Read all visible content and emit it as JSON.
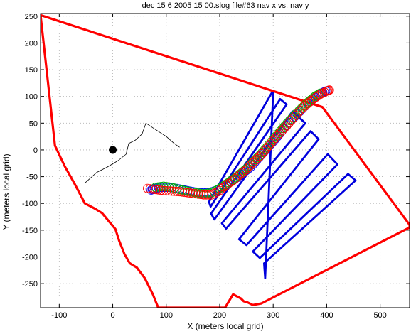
{
  "chart_data": {
    "type": "scatter",
    "title": "dec 15 6 2005      15 00.slog  file#63   nav x vs. nav y",
    "xlabel": "X (meters local grid)",
    "ylabel": "Y (meters local grid)",
    "xlim": [
      -135,
      555
    ],
    "ylim": [
      -295,
      255
    ],
    "grid": true,
    "x_ticks": [
      -100,
      0,
      100,
      200,
      300,
      400,
      500
    ],
    "y_ticks": [
      250,
      200,
      150,
      100,
      50,
      0,
      -50,
      -100,
      -150,
      -200,
      -250
    ],
    "colors": {
      "boundary": "#ff0000",
      "survey_lines": "#0000dd",
      "track_blue": "#0000ff",
      "track_green": "#00bb00",
      "track_red": "#ff0000",
      "nav_trace": "#000000",
      "reference_point": "#000000"
    },
    "series": [
      {
        "style": "line",
        "color_key": "boundary",
        "points": [
          [
            -135,
            252
          ],
          [
            -108,
            8
          ],
          [
            -90,
            -30
          ],
          [
            -72,
            -62
          ],
          [
            -52,
            -100
          ],
          [
            -33,
            -110
          ],
          [
            -20,
            -118
          ],
          [
            -10,
            -130
          ],
          [
            5,
            -148
          ],
          [
            12,
            -170
          ],
          [
            22,
            -195
          ],
          [
            32,
            -212
          ],
          [
            45,
            -220
          ],
          [
            60,
            -240
          ],
          [
            75,
            -270
          ],
          [
            85,
            -295
          ],
          [
            210,
            -295
          ],
          [
            225,
            -270
          ],
          [
            240,
            -278
          ],
          [
            245,
            -283
          ],
          [
            252,
            -285
          ],
          [
            262,
            -290
          ],
          [
            278,
            -287
          ],
          [
            555,
            -145
          ],
          [
            555,
            -140
          ],
          [
            392,
            80
          ],
          [
            -135,
            252
          ]
        ]
      },
      {
        "style": "line",
        "color_key": "survey_lines",
        "points": [
          [
            298,
            108
          ],
          [
            180,
            -97
          ],
          [
            183,
            -106
          ],
          [
            313,
            95
          ],
          [
            325,
            85
          ],
          [
            184,
            -119
          ],
          [
            190,
            -130
          ],
          [
            336,
            72
          ],
          [
            360,
            50
          ],
          [
            204,
            -137
          ],
          [
            212,
            -147
          ],
          [
            370,
            35
          ],
          [
            385,
            20
          ],
          [
            236,
            -167
          ],
          [
            250,
            -178
          ],
          [
            402,
            -8
          ],
          [
            420,
            -27
          ],
          [
            262,
            -190
          ],
          [
            275,
            -202
          ],
          [
            440,
            -45
          ],
          [
            454,
            -57
          ],
          [
            283,
            -212
          ],
          [
            285,
            -240
          ],
          [
            300,
            108
          ]
        ]
      },
      {
        "style": "line",
        "color_key": "nav_trace",
        "points": [
          [
            -52,
            -62
          ],
          [
            -30,
            -42
          ],
          [
            -10,
            -32
          ],
          [
            10,
            -20
          ],
          [
            25,
            -8
          ],
          [
            30,
            12
          ],
          [
            42,
            18
          ],
          [
            55,
            30
          ],
          [
            62,
            50
          ],
          [
            80,
            38
          ],
          [
            100,
            25
          ],
          [
            115,
            12
          ],
          [
            125,
            5
          ]
        ]
      },
      {
        "style": "circles",
        "color_key": "track_blue",
        "points": [
          [
            72,
            -75
          ],
          [
            78,
            -72
          ],
          [
            90,
            -70
          ],
          [
            105,
            -70
          ],
          [
            120,
            -72
          ],
          [
            135,
            -75
          ],
          [
            150,
            -78
          ],
          [
            165,
            -80
          ],
          [
            180,
            -80
          ],
          [
            195,
            -75
          ],
          [
            208,
            -68
          ],
          [
            220,
            -60
          ],
          [
            232,
            -52
          ],
          [
            245,
            -42
          ],
          [
            258,
            -32
          ],
          [
            270,
            -18
          ],
          [
            282,
            -5
          ],
          [
            295,
            10
          ],
          [
            308,
            25
          ],
          [
            320,
            40
          ],
          [
            335,
            57
          ],
          [
            350,
            72
          ],
          [
            365,
            87
          ],
          [
            378,
            98
          ],
          [
            390,
            106
          ],
          [
            398,
            110
          ]
        ]
      },
      {
        "style": "circles",
        "color_key": "track_green",
        "points": [
          [
            80,
            -70
          ],
          [
            95,
            -68
          ],
          [
            110,
            -70
          ],
          [
            125,
            -74
          ],
          [
            140,
            -77
          ],
          [
            155,
            -80
          ],
          [
            170,
            -82
          ],
          [
            185,
            -80
          ],
          [
            200,
            -72
          ],
          [
            212,
            -64
          ],
          [
            225,
            -55
          ],
          [
            238,
            -45
          ],
          [
            250,
            -35
          ],
          [
            262,
            -22
          ],
          [
            275,
            -10
          ],
          [
            288,
            5
          ],
          [
            300,
            20
          ],
          [
            313,
            35
          ],
          [
            326,
            50
          ],
          [
            340,
            65
          ],
          [
            353,
            78
          ],
          [
            366,
            90
          ],
          [
            378,
            100
          ],
          [
            388,
            106
          ]
        ]
      },
      {
        "style": "circles",
        "color_key": "track_red",
        "points": [
          [
            65,
            -72
          ],
          [
            80,
            -74
          ],
          [
            95,
            -76
          ],
          [
            110,
            -77
          ],
          [
            125,
            -78
          ],
          [
            140,
            -80
          ],
          [
            155,
            -82
          ],
          [
            170,
            -84
          ],
          [
            185,
            -84
          ],
          [
            200,
            -76
          ],
          [
            212,
            -66
          ],
          [
            225,
            -57
          ],
          [
            237,
            -47
          ],
          [
            250,
            -37
          ],
          [
            262,
            -24
          ],
          [
            275,
            -12
          ],
          [
            287,
            2
          ],
          [
            300,
            17
          ],
          [
            312,
            31
          ],
          [
            325,
            45
          ],
          [
            338,
            60
          ],
          [
            351,
            74
          ],
          [
            364,
            86
          ],
          [
            376,
            96
          ],
          [
            388,
            104
          ],
          [
            400,
            110
          ],
          [
            405,
            112
          ]
        ]
      },
      {
        "style": "dot",
        "color_key": "reference_point",
        "points": [
          [
            0,
            0
          ]
        ]
      }
    ]
  }
}
